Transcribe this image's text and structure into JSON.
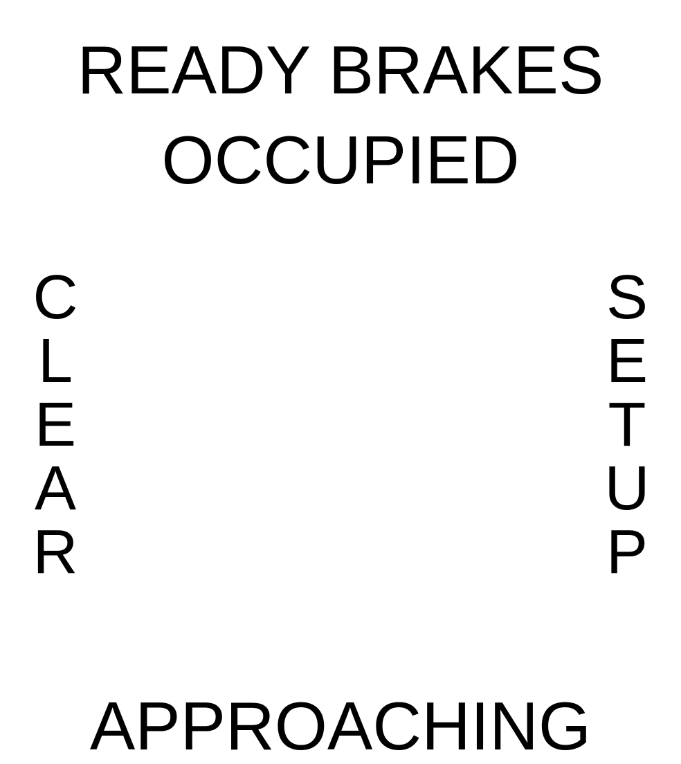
{
  "top_line_1": "READY BRAKES",
  "top_line_2": "OCCUPIED",
  "left_vertical": "CLEAR",
  "right_vertical": "SETUP",
  "bottom_line": "APPROACHING"
}
